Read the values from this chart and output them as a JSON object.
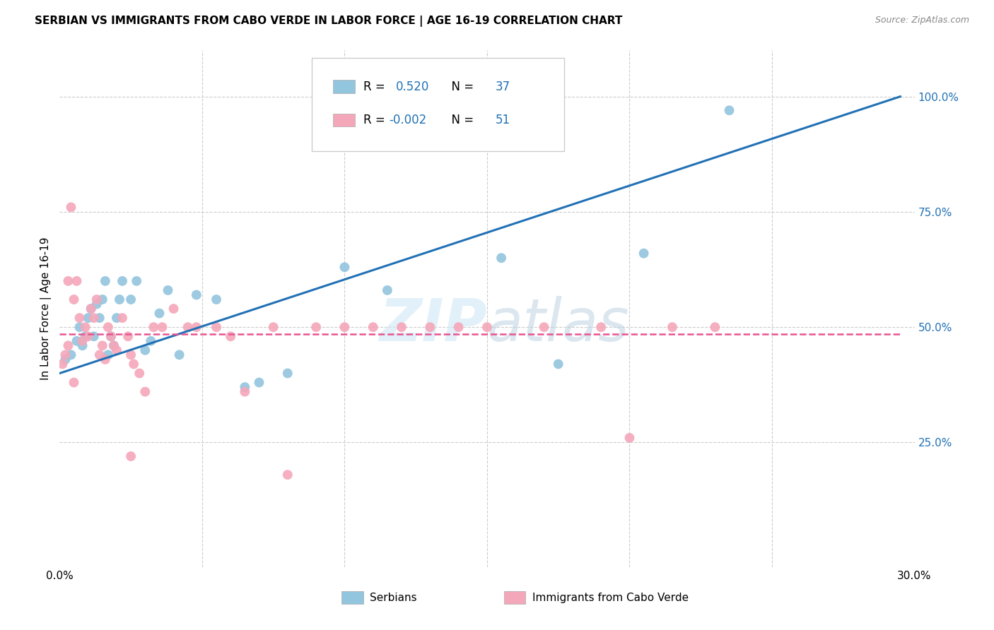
{
  "title": "SERBIAN VS IMMIGRANTS FROM CABO VERDE IN LABOR FORCE | AGE 16-19 CORRELATION CHART",
  "source": "Source: ZipAtlas.com",
  "ylabel": "In Labor Force | Age 16-19",
  "xlim": [
    0.0,
    0.3
  ],
  "ylim": [
    -0.02,
    1.1
  ],
  "ytick_vals": [
    0.0,
    0.25,
    0.5,
    0.75,
    1.0
  ],
  "ytick_labels": [
    "",
    "25.0%",
    "50.0%",
    "75.0%",
    "100.0%"
  ],
  "xtick_vals": [
    0.0,
    0.05,
    0.1,
    0.15,
    0.2,
    0.25,
    0.3
  ],
  "xtick_labels": [
    "0.0%",
    "",
    "",
    "",
    "",
    "",
    "30.0%"
  ],
  "blue_color": "#92c5de",
  "pink_color": "#f4a7b9",
  "trendline_blue": "#2171b5",
  "trendline_pink": "#e8538f",
  "tick_color": "#2171b5",
  "legend_R_blue": "0.520",
  "legend_N_blue": "37",
  "legend_R_pink": "-0.002",
  "legend_N_pink": "51",
  "blue_trend_x": [
    0.0,
    0.295
  ],
  "blue_trend_y": [
    0.4,
    1.0
  ],
  "pink_trend_x": [
    0.0,
    0.295
  ],
  "pink_trend_y": [
    0.485,
    0.485
  ],
  "blue_scatter_x": [
    0.002,
    0.004,
    0.006,
    0.007,
    0.008,
    0.009,
    0.01,
    0.011,
    0.012,
    0.013,
    0.014,
    0.015,
    0.016,
    0.017,
    0.018,
    0.019,
    0.02,
    0.021,
    0.022,
    0.025,
    0.027,
    0.03,
    0.032,
    0.035,
    0.038,
    0.042,
    0.048,
    0.055,
    0.065,
    0.07,
    0.1,
    0.115,
    0.155,
    0.175,
    0.205,
    0.235,
    0.08
  ],
  "blue_scatter_y": [
    0.43,
    0.44,
    0.47,
    0.5,
    0.46,
    0.48,
    0.52,
    0.54,
    0.48,
    0.55,
    0.52,
    0.56,
    0.6,
    0.44,
    0.48,
    0.46,
    0.52,
    0.56,
    0.6,
    0.56,
    0.6,
    0.45,
    0.47,
    0.53,
    0.58,
    0.44,
    0.57,
    0.56,
    0.37,
    0.38,
    0.63,
    0.58,
    0.65,
    0.42,
    0.66,
    0.97,
    0.4
  ],
  "pink_scatter_x": [
    0.001,
    0.002,
    0.003,
    0.004,
    0.005,
    0.006,
    0.007,
    0.008,
    0.009,
    0.01,
    0.011,
    0.012,
    0.013,
    0.014,
    0.015,
    0.016,
    0.017,
    0.018,
    0.019,
    0.02,
    0.022,
    0.024,
    0.025,
    0.026,
    0.028,
    0.03,
    0.033,
    0.036,
    0.04,
    0.045,
    0.048,
    0.055,
    0.06,
    0.065,
    0.075,
    0.08,
    0.09,
    0.1,
    0.11,
    0.12,
    0.13,
    0.14,
    0.15,
    0.17,
    0.19,
    0.2,
    0.215,
    0.23,
    0.005,
    0.003,
    0.025
  ],
  "pink_scatter_y": [
    0.42,
    0.44,
    0.46,
    0.76,
    0.56,
    0.6,
    0.52,
    0.47,
    0.5,
    0.48,
    0.54,
    0.52,
    0.56,
    0.44,
    0.46,
    0.43,
    0.5,
    0.48,
    0.46,
    0.45,
    0.52,
    0.48,
    0.44,
    0.42,
    0.4,
    0.36,
    0.5,
    0.5,
    0.54,
    0.5,
    0.5,
    0.5,
    0.48,
    0.36,
    0.5,
    0.18,
    0.5,
    0.5,
    0.5,
    0.5,
    0.5,
    0.5,
    0.5,
    0.5,
    0.5,
    0.26,
    0.5,
    0.5,
    0.38,
    0.6,
    0.22
  ]
}
